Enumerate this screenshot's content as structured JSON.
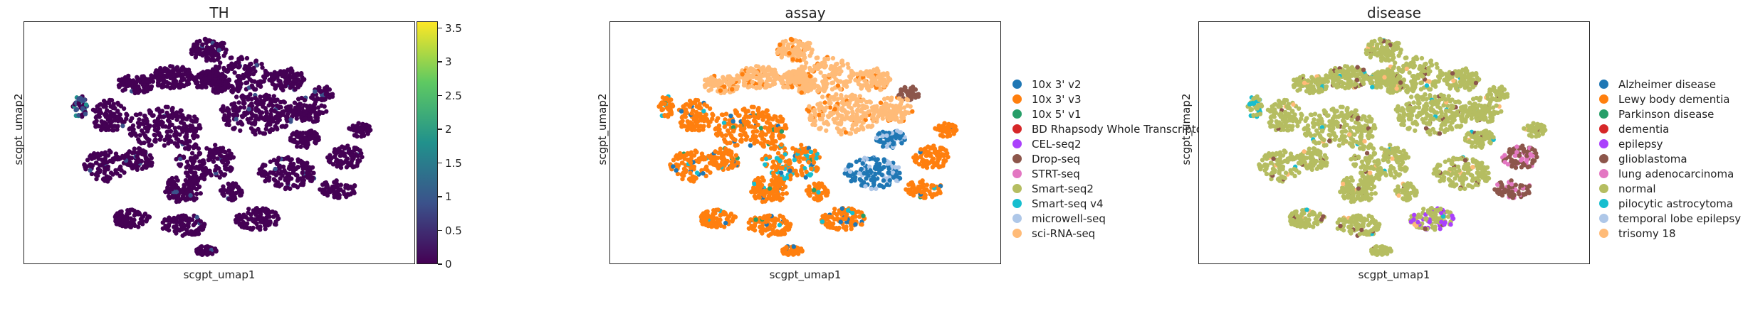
{
  "chart_data": [
    {
      "type": "scatter",
      "title": "TH",
      "xlabel": "scgpt_umap1",
      "ylabel": "scgpt_umap2",
      "colorbar": {
        "range": [
          0,
          3.6
        ],
        "ticks": [
          "0",
          "0.5",
          "1",
          "1.5",
          "2",
          "2.5",
          "3",
          "3.5"
        ],
        "tick_values": [
          0,
          0.5,
          1,
          1.5,
          2,
          2.5,
          3,
          3.5
        ],
        "colormap": "viridis",
        "colors": [
          "#440154",
          "#3b528b",
          "#21918c",
          "#5ec962",
          "#fde725"
        ]
      },
      "base_color": "#440154"
    },
    {
      "type": "scatter",
      "title": "assay",
      "xlabel": "scgpt_umap1",
      "ylabel": "scgpt_umap2",
      "legend_placement": "right",
      "categories": [
        {
          "label": "10x 3' v2",
          "color": "#1f77b4"
        },
        {
          "label": "10x 3' v3",
          "color": "#ff7f0e"
        },
        {
          "label": "10x 5' v1",
          "color": "#279e68"
        },
        {
          "label": "BD Rhapsody Whole Transcriptome",
          "color": "#d62728"
        },
        {
          "label": "CEL-seq2",
          "color": "#aa40fc"
        },
        {
          "label": "Drop-seq",
          "color": "#8c564b"
        },
        {
          "label": "STRT-seq",
          "color": "#e377c2"
        },
        {
          "label": "Smart-seq2",
          "color": "#b5bd61"
        },
        {
          "label": "Smart-seq v4",
          "color": "#17becf"
        },
        {
          "label": "microwell-seq",
          "color": "#aec7e8"
        },
        {
          "label": "sci-RNA-seq",
          "color": "#ffbb78"
        }
      ]
    },
    {
      "type": "scatter",
      "title": "disease",
      "xlabel": "scgpt_umap1",
      "ylabel": "scgpt_umap2",
      "legend_placement": "right",
      "categories": [
        {
          "label": "Alzheimer disease",
          "color": "#1f77b4"
        },
        {
          "label": "Lewy body dementia",
          "color": "#ff7f0e"
        },
        {
          "label": "Parkinson disease",
          "color": "#279e68"
        },
        {
          "label": "dementia",
          "color": "#d62728"
        },
        {
          "label": "epilepsy",
          "color": "#aa40fc"
        },
        {
          "label": "glioblastoma",
          "color": "#8c564b"
        },
        {
          "label": "lung adenocarcinoma",
          "color": "#e377c2"
        },
        {
          "label": "normal",
          "color": "#b5bd61"
        },
        {
          "label": "pilocytic astrocytoma",
          "color": "#17becf"
        },
        {
          "label": "temporal lobe epilepsy",
          "color": "#aec7e8"
        },
        {
          "label": "trisomy 18",
          "color": "#ffbb78"
        }
      ]
    }
  ]
}
